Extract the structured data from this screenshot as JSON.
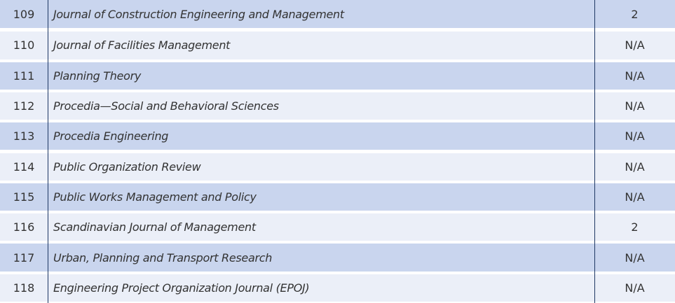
{
  "table": {
    "rows": [
      [
        "109",
        "Journal of Construction Engineering and Management",
        "2"
      ],
      [
        "110",
        "Journal of Facilities Management",
        "N/A"
      ],
      [
        "111",
        "Planning Theory",
        "N/A"
      ],
      [
        "112",
        "Procedia—Social and Behavioral Sciences",
        "N/A"
      ],
      [
        "113",
        "Procedia Engineering",
        "N/A"
      ],
      [
        "114",
        "Public Organization Review",
        "N/A"
      ],
      [
        "115",
        "Public Works Management and Policy",
        "N/A"
      ],
      [
        "116",
        "Scandinavian Journal of Management",
        "2"
      ],
      [
        "117",
        "Urban, Planning and Transport Research",
        "N/A"
      ],
      [
        "118",
        "Engineering Project Organization Journal (EPOJ)",
        "N/A"
      ]
    ]
  }
}
